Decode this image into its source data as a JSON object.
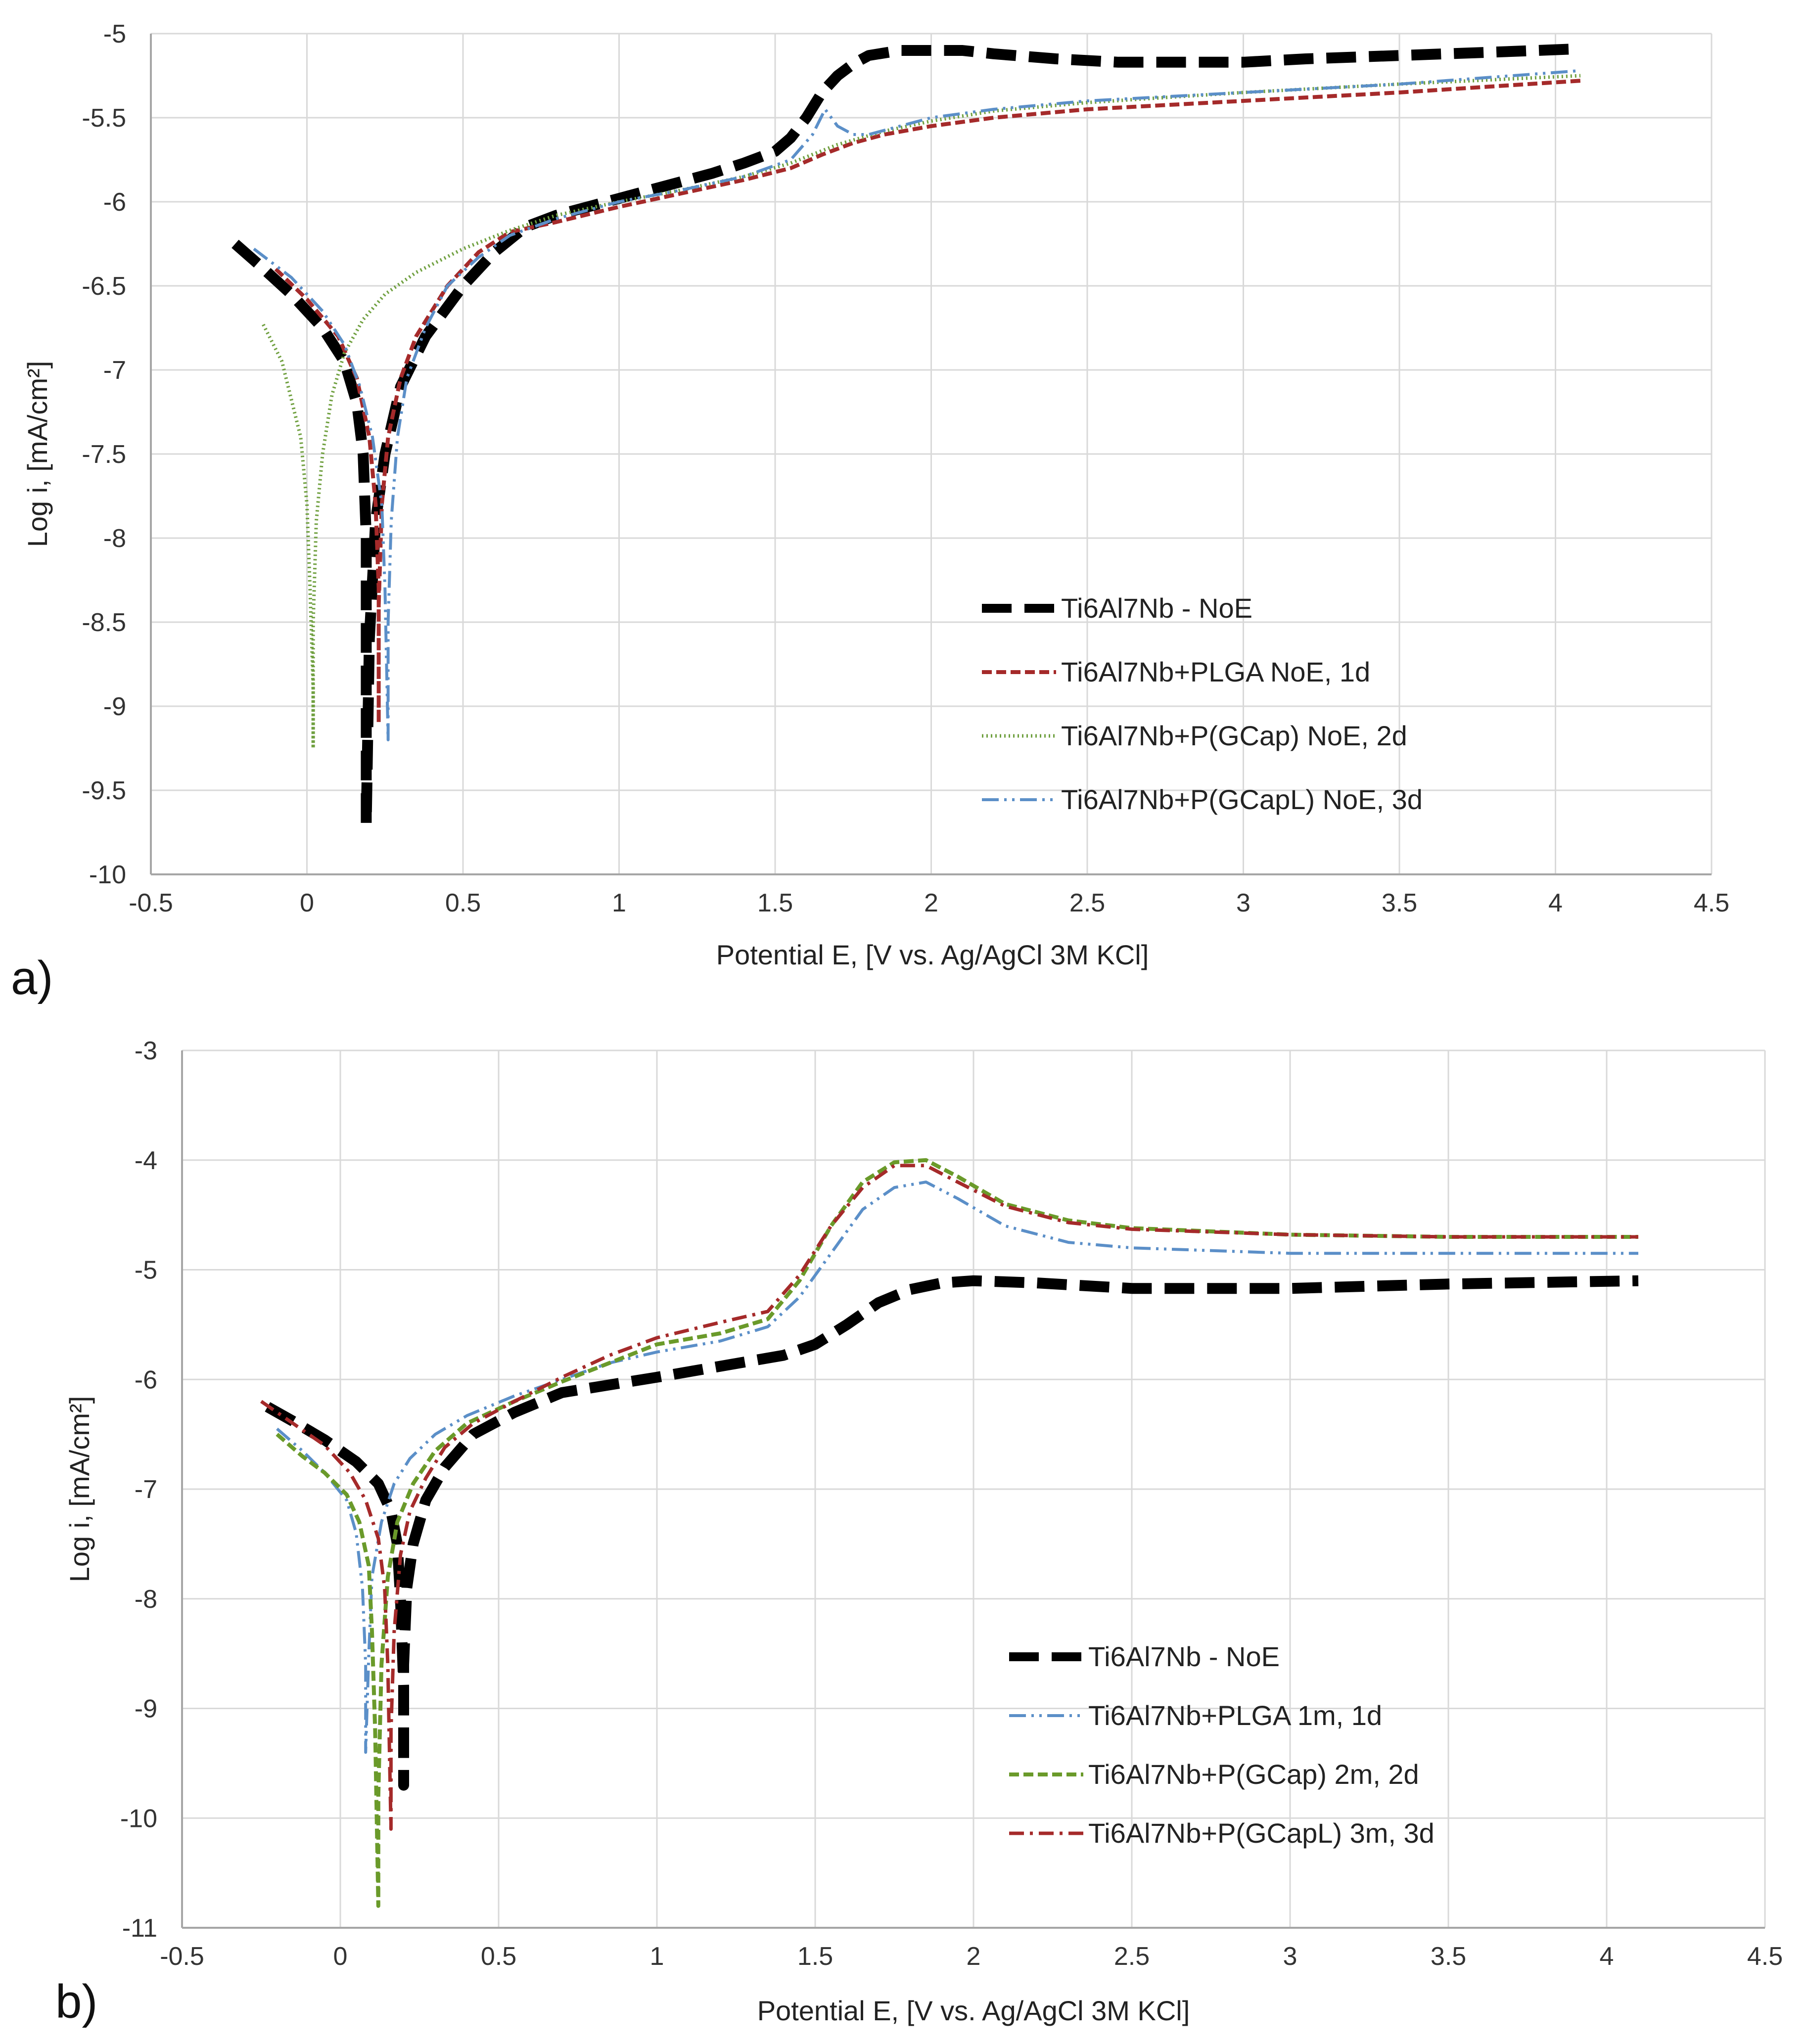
{
  "figure": {
    "panel_labels": [
      "a)",
      "b)"
    ]
  },
  "colors": {
    "noe": "#000000",
    "plga_a": "#a52a2a",
    "pgcap_a": "#70a040",
    "pgcapl_a": "#5b8fc8",
    "plga_b": "#5b8fc8",
    "pgcap_b": "#6a9a2a",
    "pgcapl_b": "#a52a2a",
    "grid": "#d9d9d9",
    "axis": "#a6a6a6"
  },
  "chart_data": [
    {
      "type": "line",
      "panel": "a)",
      "xlabel": "Potential E, [V vs. Ag/AgCl 3M KCl]",
      "ylabel": "Log i, [mA/cm²]",
      "xlim": [
        -0.5,
        4.5
      ],
      "ylim": [
        -10,
        -5
      ],
      "xticks": [
        -0.5,
        0,
        0.5,
        1,
        1.5,
        2,
        2.5,
        3,
        3.5,
        4,
        4.5
      ],
      "yticks": [
        -5,
        -5.5,
        -6,
        -6.5,
        -7,
        -7.5,
        -8,
        -8.5,
        -9,
        -9.5,
        -10
      ],
      "xtick_labels": [
        "-0.5",
        "0",
        "0.5",
        "1",
        "1.5",
        "2",
        "2.5",
        "3",
        "3.5",
        "4",
        "4.5"
      ],
      "ytick_labels": [
        "-5",
        "-5.5",
        "-6",
        "-6.5",
        "-7",
        "-7.5",
        "-8",
        "-8.5",
        "-9",
        "-9.5",
        "-10"
      ],
      "grid": true,
      "legend_position": "center-right",
      "series": [
        {
          "name": "Ti6Al7Nb - NoE",
          "style": "long-dash-bold",
          "color_key": "noe",
          "x": [
            -0.23,
            -0.15,
            -0.05,
            0.05,
            0.12,
            0.16,
            0.18,
            0.19,
            0.19,
            0.19,
            0.2,
            0.22,
            0.25,
            0.3,
            0.38,
            0.5,
            0.6,
            0.7,
            0.8,
            0.9,
            1.0,
            1.1,
            1.2,
            1.3,
            1.4,
            1.5,
            1.55,
            1.6,
            1.65,
            1.7,
            1.75,
            1.8,
            1.9,
            2.0,
            2.1,
            2.2,
            2.4,
            2.6,
            2.8,
            3.0,
            3.2,
            3.5,
            3.8,
            4.08
          ],
          "y": [
            -6.25,
            -6.38,
            -6.55,
            -6.75,
            -6.95,
            -7.2,
            -7.5,
            -8.0,
            -8.8,
            -9.7,
            -8.6,
            -7.9,
            -7.5,
            -7.1,
            -6.8,
            -6.5,
            -6.3,
            -6.15,
            -6.08,
            -6.03,
            -5.98,
            -5.93,
            -5.88,
            -5.83,
            -5.77,
            -5.7,
            -5.62,
            -5.5,
            -5.35,
            -5.25,
            -5.18,
            -5.13,
            -5.1,
            -5.1,
            -5.1,
            -5.12,
            -5.15,
            -5.17,
            -5.17,
            -5.17,
            -5.15,
            -5.13,
            -5.11,
            -5.09
          ]
        },
        {
          "name": "Ti6Al7Nb+PLGA NoE, 1d",
          "style": "short-dash",
          "color_key": "plga_a",
          "x": [
            -0.1,
            0.0,
            0.1,
            0.16,
            0.2,
            0.22,
            0.23,
            0.23,
            0.23,
            0.24,
            0.26,
            0.3,
            0.35,
            0.45,
            0.55,
            0.65,
            0.8,
            1.0,
            1.2,
            1.4,
            1.55,
            1.65,
            1.75,
            1.85,
            2.0,
            2.2,
            2.5,
            3.0,
            3.5,
            4.08
          ],
          "y": [
            -6.4,
            -6.58,
            -6.8,
            -7.05,
            -7.4,
            -7.8,
            -8.3,
            -9.1,
            -8.4,
            -7.8,
            -7.4,
            -7.05,
            -6.8,
            -6.5,
            -6.3,
            -6.18,
            -6.12,
            -6.03,
            -5.95,
            -5.87,
            -5.8,
            -5.72,
            -5.65,
            -5.6,
            -5.55,
            -5.5,
            -5.45,
            -5.4,
            -5.35,
            -5.28
          ]
        },
        {
          "name": "Ti6Al7Nb+P(GCap) NoE, 2d",
          "style": "dotted",
          "color_key": "pgcap_a",
          "x": [
            -0.14,
            -0.08,
            -0.02,
            0.0,
            0.01,
            0.02,
            0.02,
            0.02,
            0.03,
            0.05,
            0.08,
            0.12,
            0.18,
            0.25,
            0.35,
            0.5,
            0.65,
            0.8,
            1.0,
            1.2,
            1.4,
            1.55,
            1.7,
            1.85,
            2.0,
            2.2,
            2.5,
            3.0,
            3.5,
            4.08
          ],
          "y": [
            -6.73,
            -6.95,
            -7.4,
            -7.8,
            -8.3,
            -8.9,
            -9.25,
            -8.5,
            -7.9,
            -7.5,
            -7.15,
            -6.9,
            -6.7,
            -6.55,
            -6.42,
            -6.28,
            -6.17,
            -6.08,
            -6.0,
            -5.93,
            -5.85,
            -5.77,
            -5.66,
            -5.58,
            -5.52,
            -5.46,
            -5.41,
            -5.35,
            -5.3,
            -5.25
          ]
        },
        {
          "name": "Ti6Al7Nb+P(GCapL) NoE, 3d",
          "style": "dash-dot-dot",
          "color_key": "pgcapl_a",
          "x": [
            -0.17,
            -0.05,
            0.05,
            0.12,
            0.17,
            0.21,
            0.24,
            0.25,
            0.26,
            0.26,
            0.27,
            0.29,
            0.32,
            0.38,
            0.45,
            0.55,
            0.65,
            0.8,
            1.0,
            1.2,
            1.4,
            1.55,
            1.62,
            1.66,
            1.7,
            1.75,
            1.8,
            1.9,
            2.0,
            2.2,
            2.5,
            3.0,
            3.5,
            4.08
          ],
          "y": [
            -6.28,
            -6.45,
            -6.65,
            -6.85,
            -7.1,
            -7.4,
            -7.8,
            -8.3,
            -9.2,
            -8.5,
            -7.9,
            -7.4,
            -7.05,
            -6.75,
            -6.5,
            -6.33,
            -6.2,
            -6.1,
            -6.0,
            -5.93,
            -5.85,
            -5.75,
            -5.6,
            -5.45,
            -5.55,
            -5.6,
            -5.6,
            -5.55,
            -5.5,
            -5.45,
            -5.4,
            -5.35,
            -5.3,
            -5.22
          ]
        }
      ]
    },
    {
      "type": "line",
      "panel": "b)",
      "xlabel": "Potential E, [V vs. Ag/AgCl 3M KCl]",
      "ylabel": "Log i, [mA/cm²]",
      "xlim": [
        -0.5,
        4.5
      ],
      "ylim": [
        -11,
        -3
      ],
      "xticks": [
        -0.5,
        0,
        0.5,
        1,
        1.5,
        2,
        2.5,
        3,
        3.5,
        4,
        4.5
      ],
      "yticks": [
        -3,
        -4,
        -5,
        -6,
        -7,
        -8,
        -9,
        -10,
        -11
      ],
      "xtick_labels": [
        "-0.5",
        "0",
        "0.5",
        "1",
        "1.5",
        "2",
        "2.5",
        "3",
        "3.5",
        "4",
        "4.5"
      ],
      "ytick_labels": [
        "-3",
        "-4",
        "-5",
        "-6",
        "-7",
        "-8",
        "-9",
        "-10",
        "-11"
      ],
      "grid": true,
      "legend_position": "center-right",
      "series": [
        {
          "name": "Ti6Al7Nb - NoE",
          "style": "long-dash-bold",
          "color_key": "noe",
          "x": [
            -0.23,
            -0.15,
            -0.05,
            0.05,
            0.12,
            0.16,
            0.18,
            0.19,
            0.2,
            0.2,
            0.2,
            0.21,
            0.23,
            0.27,
            0.33,
            0.42,
            0.55,
            0.7,
            0.85,
            1.0,
            1.2,
            1.4,
            1.5,
            1.6,
            1.7,
            1.8,
            1.9,
            2.0,
            2.2,
            2.5,
            2.8,
            3.0,
            3.5,
            4.1
          ],
          "y": [
            -6.25,
            -6.38,
            -6.55,
            -6.75,
            -6.95,
            -7.2,
            -7.5,
            -8.0,
            -8.8,
            -9.7,
            -8.6,
            -7.9,
            -7.5,
            -7.1,
            -6.8,
            -6.5,
            -6.3,
            -6.12,
            -6.05,
            -5.98,
            -5.88,
            -5.78,
            -5.68,
            -5.5,
            -5.3,
            -5.18,
            -5.12,
            -5.1,
            -5.12,
            -5.17,
            -5.17,
            -5.17,
            -5.13,
            -5.1
          ]
        },
        {
          "name": "Ti6Al7Nb+PLGA 1m, 1d",
          "style": "dash-dot-dot",
          "color_key": "plga_b",
          "x": [
            -0.2,
            -0.12,
            -0.05,
            0.02,
            0.05,
            0.07,
            0.08,
            0.08,
            0.09,
            0.1,
            0.13,
            0.17,
            0.22,
            0.3,
            0.4,
            0.55,
            0.7,
            0.85,
            1.0,
            1.2,
            1.35,
            1.45,
            1.55,
            1.65,
            1.75,
            1.85,
            1.95,
            2.1,
            2.3,
            2.5,
            3.0,
            3.5,
            4.1
          ],
          "y": [
            -6.45,
            -6.65,
            -6.85,
            -7.1,
            -7.4,
            -7.9,
            -8.6,
            -9.4,
            -8.5,
            -7.8,
            -7.3,
            -6.95,
            -6.72,
            -6.5,
            -6.33,
            -6.15,
            -6.0,
            -5.85,
            -5.75,
            -5.65,
            -5.52,
            -5.25,
            -4.85,
            -4.45,
            -4.25,
            -4.2,
            -4.35,
            -4.6,
            -4.75,
            -4.8,
            -4.85,
            -4.85,
            -4.85
          ]
        },
        {
          "name": "Ti6Al7Nb+P(GCap) 2m, 2d",
          "style": "short-dash",
          "color_key": "pgcap_b",
          "x": [
            -0.2,
            -0.12,
            -0.05,
            0.02,
            0.06,
            0.09,
            0.1,
            0.11,
            0.12,
            0.12,
            0.13,
            0.15,
            0.18,
            0.23,
            0.3,
            0.4,
            0.55,
            0.7,
            0.85,
            1.0,
            1.2,
            1.35,
            1.45,
            1.55,
            1.65,
            1.75,
            1.85,
            1.95,
            2.1,
            2.3,
            2.5,
            3.0,
            3.5,
            4.1
          ],
          "y": [
            -6.5,
            -6.7,
            -6.85,
            -7.05,
            -7.3,
            -7.7,
            -8.3,
            -9.2,
            -10.8,
            -9.8,
            -8.6,
            -7.8,
            -7.3,
            -6.95,
            -6.65,
            -6.4,
            -6.2,
            -6.02,
            -5.85,
            -5.68,
            -5.58,
            -5.45,
            -5.1,
            -4.6,
            -4.2,
            -4.02,
            -4.0,
            -4.15,
            -4.4,
            -4.55,
            -4.62,
            -4.68,
            -4.7,
            -4.7
          ]
        },
        {
          "name": "Ti6Al7Nb+P(GCapL) 3m, 3d",
          "style": "dash-dot",
          "color_key": "pgcapl_b",
          "x": [
            -0.25,
            -0.15,
            -0.05,
            0.03,
            0.08,
            0.12,
            0.14,
            0.15,
            0.16,
            0.16,
            0.17,
            0.19,
            0.22,
            0.27,
            0.33,
            0.42,
            0.55,
            0.7,
            0.85,
            1.0,
            1.2,
            1.35,
            1.45,
            1.55,
            1.65,
            1.75,
            1.85,
            1.95,
            2.1,
            2.3,
            2.5,
            3.0,
            3.5,
            4.1
          ],
          "y": [
            -6.2,
            -6.4,
            -6.6,
            -6.85,
            -7.1,
            -7.45,
            -7.9,
            -8.6,
            -10.1,
            -9.2,
            -8.3,
            -7.6,
            -7.2,
            -6.9,
            -6.62,
            -6.4,
            -6.2,
            -5.98,
            -5.78,
            -5.62,
            -5.48,
            -5.38,
            -5.05,
            -4.6,
            -4.25,
            -4.05,
            -4.05,
            -4.2,
            -4.42,
            -4.57,
            -4.63,
            -4.68,
            -4.7,
            -4.7
          ]
        }
      ]
    }
  ]
}
